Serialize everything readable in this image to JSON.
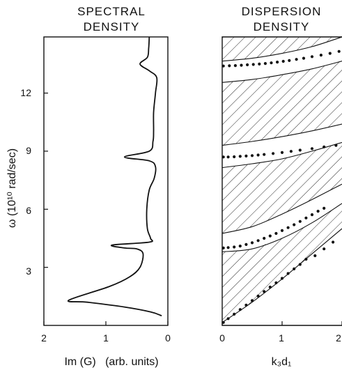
{
  "chart_data": [
    {
      "type": "line",
      "title": [
        "SPECTRAL",
        "DENSITY"
      ],
      "xlabel": "Im (G)   (arb. units)",
      "ylabel": "ω (10¹⁰ rad/sec)",
      "xlim": [
        2,
        0
      ],
      "ylim": [
        0,
        14.9
      ],
      "xticks": [
        "2",
        "1",
        "0"
      ],
      "yticks": [
        "3",
        "6",
        "9",
        "12"
      ],
      "series": [
        {
          "points": [
            [
              0.3,
              14.9
            ],
            [
              0.31,
              14.3
            ],
            [
              0.33,
              13.85
            ],
            [
              0.45,
              13.5
            ],
            [
              0.3,
              13.15
            ],
            [
              0.18,
              12.8
            ],
            [
              0.2,
              12.0
            ],
            [
              0.23,
              11.0
            ],
            [
              0.23,
              10.0
            ],
            [
              0.24,
              9.5
            ],
            [
              0.3,
              9.0
            ],
            [
              0.7,
              8.7
            ],
            [
              0.3,
              8.5
            ],
            [
              0.2,
              8.2
            ],
            [
              0.22,
              7.6
            ],
            [
              0.3,
              7.0
            ],
            [
              0.34,
              6.0
            ],
            [
              0.33,
              5.0
            ],
            [
              0.28,
              4.5
            ],
            [
              0.3,
              4.3
            ],
            [
              0.9,
              4.15
            ],
            [
              0.7,
              4.0
            ],
            [
              0.5,
              3.95
            ],
            [
              0.4,
              3.7
            ],
            [
              0.45,
              3.0
            ],
            [
              0.62,
              2.5
            ],
            [
              0.95,
              2.0
            ],
            [
              1.6,
              1.3
            ],
            [
              1.3,
              1.2
            ],
            [
              0.7,
              0.95
            ],
            [
              0.28,
              0.7
            ],
            [
              0.1,
              0.5
            ]
          ]
        }
      ]
    },
    {
      "type": "area",
      "title": [
        "DISPERSION",
        "DENSITY"
      ],
      "xlabel": "k₃d₁",
      "xlim": [
        0,
        2
      ],
      "ylim": [
        0,
        14.9
      ],
      "xticks": [
        "0",
        "1",
        "2"
      ],
      "bands": [
        {
          "lower": [
            [
              0,
              0.15
            ],
            [
              0.5,
              1.2
            ],
            [
              1.0,
              2.4
            ],
            [
              1.5,
              3.7
            ],
            [
              2.0,
              5.0
            ]
          ],
          "upper": [
            [
              0,
              3.8
            ],
            [
              0.5,
              3.95
            ],
            [
              1.0,
              4.5
            ],
            [
              1.5,
              5.3
            ],
            [
              2.0,
              6.3
            ]
          ]
        },
        {
          "lower": [
            [
              0,
              4.75
            ],
            [
              0.5,
              5.1
            ],
            [
              1.0,
              5.75
            ],
            [
              1.5,
              6.5
            ],
            [
              2.0,
              7.3
            ]
          ],
          "upper": [
            [
              0,
              8.15
            ],
            [
              0.5,
              8.35
            ],
            [
              1.0,
              8.6
            ],
            [
              1.5,
              9.0
            ],
            [
              2.0,
              9.45
            ]
          ]
        },
        {
          "lower": [
            [
              0,
              9.3
            ],
            [
              0.5,
              9.5
            ],
            [
              1.0,
              9.75
            ],
            [
              1.5,
              10.05
            ],
            [
              2.0,
              10.4
            ]
          ],
          "upper": [
            [
              0,
              12.55
            ],
            [
              0.5,
              12.7
            ],
            [
              1.0,
              12.95
            ],
            [
              1.5,
              13.25
            ],
            [
              2.0,
              13.65
            ]
          ]
        },
        {
          "lower": [
            [
              0,
              13.65
            ],
            [
              0.5,
              13.8
            ],
            [
              1.0,
              14.05
            ],
            [
              1.5,
              14.4
            ],
            [
              2.0,
              14.9
            ]
          ],
          "upper": [
            [
              0,
              14.9
            ],
            [
              2.0,
              14.9
            ]
          ]
        }
      ],
      "dots": [
        [
          0.02,
          0.15
        ],
        [
          0.1,
          0.35
        ],
        [
          0.2,
          0.58
        ],
        [
          0.3,
          0.82
        ],
        [
          0.4,
          1.05
        ],
        [
          0.5,
          1.28
        ],
        [
          0.6,
          1.52
        ],
        [
          0.7,
          1.75
        ],
        [
          0.8,
          1.98
        ],
        [
          0.9,
          2.2
        ],
        [
          1.0,
          2.43
        ],
        [
          1.1,
          2.68
        ],
        [
          1.2,
          2.92
        ],
        [
          1.3,
          3.15
        ],
        [
          1.4,
          3.42
        ],
        [
          1.55,
          3.6
        ],
        [
          1.7,
          3.95
        ],
        [
          1.85,
          4.3
        ],
        [
          0.02,
          4.0
        ],
        [
          0.1,
          4.02
        ],
        [
          0.2,
          4.05
        ],
        [
          0.3,
          4.1
        ],
        [
          0.4,
          4.18
        ],
        [
          0.5,
          4.27
        ],
        [
          0.6,
          4.38
        ],
        [
          0.7,
          4.5
        ],
        [
          0.8,
          4.62
        ],
        [
          0.9,
          4.75
        ],
        [
          1.0,
          4.9
        ],
        [
          1.1,
          5.05
        ],
        [
          1.2,
          5.2
        ],
        [
          1.3,
          5.37
        ],
        [
          1.4,
          5.55
        ],
        [
          1.5,
          5.72
        ],
        [
          1.6,
          5.9
        ],
        [
          1.7,
          6.05
        ],
        [
          0.02,
          8.7
        ],
        [
          0.1,
          8.7
        ],
        [
          0.2,
          8.71
        ],
        [
          0.3,
          8.73
        ],
        [
          0.4,
          8.75
        ],
        [
          0.5,
          8.77
        ],
        [
          0.6,
          8.8
        ],
        [
          0.7,
          8.83
        ],
        [
          0.85,
          8.88
        ],
        [
          1.0,
          8.93
        ],
        [
          1.15,
          8.99
        ],
        [
          1.3,
          9.05
        ],
        [
          1.5,
          9.13
        ],
        [
          1.7,
          9.22
        ],
        [
          1.9,
          9.3
        ],
        [
          0.02,
          13.4
        ],
        [
          0.12,
          13.41
        ],
        [
          0.22,
          13.42
        ],
        [
          0.32,
          13.44
        ],
        [
          0.42,
          13.46
        ],
        [
          0.52,
          13.48
        ],
        [
          0.62,
          13.5
        ],
        [
          0.72,
          13.53
        ],
        [
          0.82,
          13.56
        ],
        [
          0.92,
          13.6
        ],
        [
          1.02,
          13.64
        ],
        [
          1.12,
          13.68
        ],
        [
          1.24,
          13.74
        ],
        [
          1.36,
          13.8
        ],
        [
          1.5,
          13.88
        ],
        [
          1.65,
          13.96
        ],
        [
          1.8,
          14.05
        ],
        [
          1.95,
          14.15
        ]
      ]
    }
  ]
}
